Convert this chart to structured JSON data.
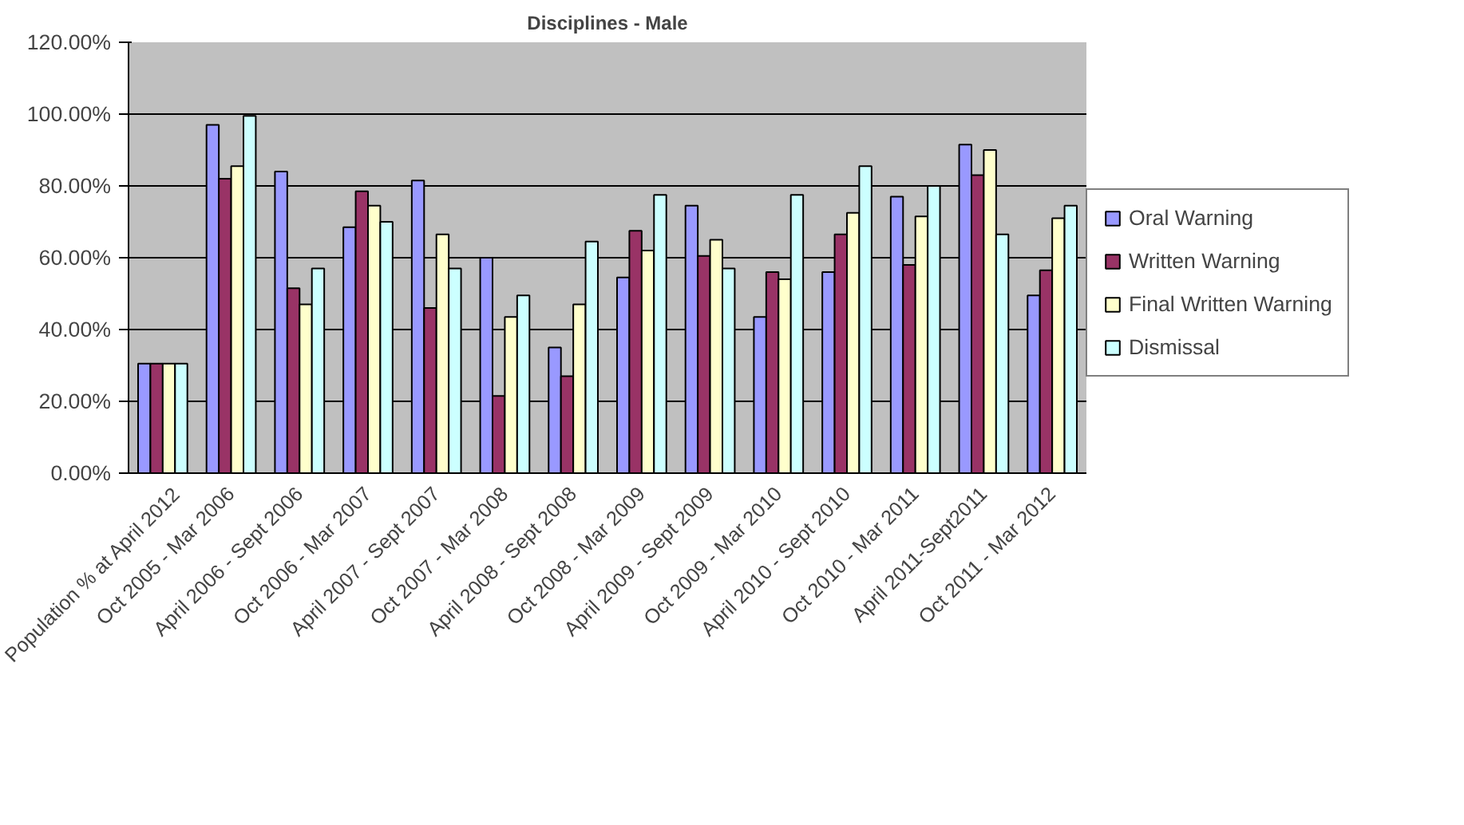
{
  "chart_data": {
    "type": "bar",
    "title": "Disciplines - Male",
    "categories": [
      "Population % at April 2012",
      "Oct 2005 - Mar 2006",
      "April 2006 - Sept 2006",
      "Oct 2006 - Mar 2007",
      "April 2007 - Sept 2007",
      "Oct 2007 - Mar 2008",
      "April 2008 - Sept 2008",
      "Oct 2008 - Mar 2009",
      "April 2009 - Sept 2009",
      "Oct 2009 - Mar 2010",
      "April 2010 - Sept 2010",
      "Oct 2010 - Mar 2011",
      "April 2011-Sept2011",
      "Oct 2011 - Mar 2012"
    ],
    "series": [
      {
        "name": "Oral Warning",
        "color": "#9999ff",
        "values": [
          30.5,
          97,
          84,
          68.5,
          81.5,
          60,
          35,
          54.5,
          74.5,
          43.5,
          56,
          77,
          91.5,
          49.5
        ]
      },
      {
        "name": "Written Warning",
        "color": "#993366",
        "values": [
          30.5,
          82,
          51.5,
          78.5,
          46,
          21.5,
          27,
          67.5,
          60.5,
          56,
          66.5,
          58,
          83,
          56.5
        ]
      },
      {
        "name": "Final Written Warning",
        "color": "#ffffcc",
        "values": [
          30.5,
          85.5,
          47,
          74.5,
          66.5,
          43.5,
          47,
          62,
          65,
          54,
          72.5,
          71.5,
          90,
          71
        ]
      },
      {
        "name": "Dismissal",
        "color": "#ccffff",
        "values": [
          30.5,
          99.5,
          57,
          70,
          57,
          49.5,
          64.5,
          77.5,
          57,
          77.5,
          85.5,
          80,
          66.5,
          74.5
        ]
      }
    ],
    "ylim": [
      0,
      120
    ],
    "yticks": [
      {
        "value": 0,
        "label": "0.00%"
      },
      {
        "value": 20,
        "label": "20.00%"
      },
      {
        "value": 40,
        "label": "40.00%"
      },
      {
        "value": 60,
        "label": "60.00%"
      },
      {
        "value": 80,
        "label": "80.00%"
      },
      {
        "value": 100,
        "label": "100.00%"
      },
      {
        "value": 120,
        "label": "120.00%"
      }
    ],
    "grid": "y",
    "legend": "right"
  }
}
